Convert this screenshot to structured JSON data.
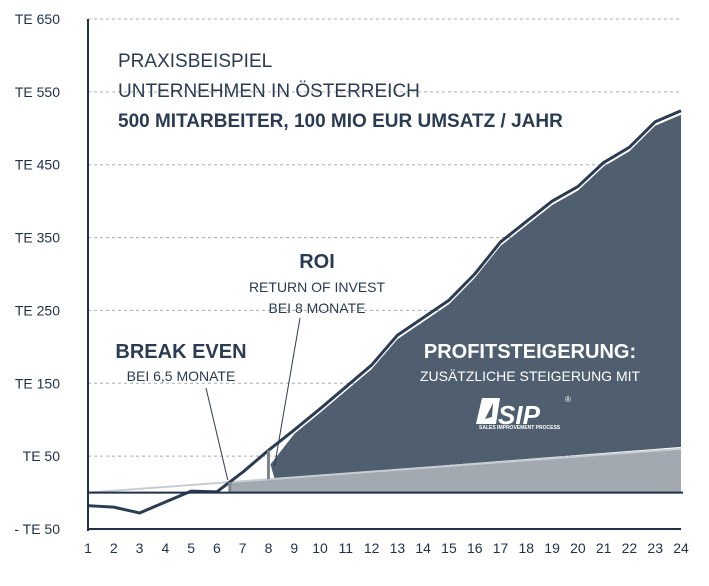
{
  "colors": {
    "axis": "#1f3147",
    "grid": "#a8adb3",
    "line": "#2b3b52",
    "profit_fill": "#4f5f70",
    "base_fill": "#a2a9b1",
    "base_line": "#c8cdd2"
  },
  "logo": {
    "text": "SIP",
    "registered": "®",
    "subtitle": "SALES IMPROVEMENT PROCESS"
  },
  "chart_data": {
    "type": "area",
    "title": {
      "line1": "PRAXISBEISPIEL",
      "line2": "UNTERNEHMEN IN ÖSTERREICH",
      "line3": "500 MITARBEITER, 100 MIO EUR UMSATZ / JAHR"
    },
    "xlabel": "",
    "ylabel": "",
    "x": [
      1,
      2,
      3,
      4,
      5,
      6,
      7,
      8,
      9,
      10,
      11,
      12,
      13,
      14,
      15,
      16,
      17,
      18,
      19,
      20,
      21,
      22,
      23,
      24
    ],
    "xlim": [
      1,
      24
    ],
    "ylim": [
      -50,
      650
    ],
    "y_ticks": [
      650,
      550,
      450,
      350,
      250,
      150,
      50,
      -50
    ],
    "y_tick_labels": [
      "TE 650",
      "TE 550",
      "TE 450",
      "TE 350",
      "TE 250",
      "TE 150",
      "TE 50",
      "- TE 50"
    ],
    "grid": true,
    "series": [
      {
        "x": [
          1,
          2,
          3,
          4,
          5,
          6,
          7,
          8,
          9,
          10,
          11,
          12,
          13,
          14,
          15,
          16,
          17,
          18,
          19,
          20,
          21,
          22,
          23,
          24
        ],
        "values": [
          -18,
          -20,
          -28,
          -13,
          2,
          1,
          28,
          58,
          86,
          115,
          145,
          175,
          216,
          240,
          264,
          300,
          344,
          372,
          400,
          420,
          453,
          474,
          509,
          524
        ]
      },
      {
        "x": [
          1,
          24
        ],
        "values": [
          0,
          60
        ]
      }
    ],
    "annotations": {
      "break_even": {
        "title": "BREAK EVEN",
        "sub": "BEI 6,5 MONATE",
        "x": 6.5
      },
      "roi": {
        "title": "ROI",
        "sub1": "RETURN OF INVEST",
        "sub2": "BEI 8 MONATE",
        "x": 8
      },
      "profit": {
        "title": "PROFITSTEIGERUNG:",
        "sub": "ZUSÄTZLICHE STEIGERUNG MIT"
      }
    }
  }
}
